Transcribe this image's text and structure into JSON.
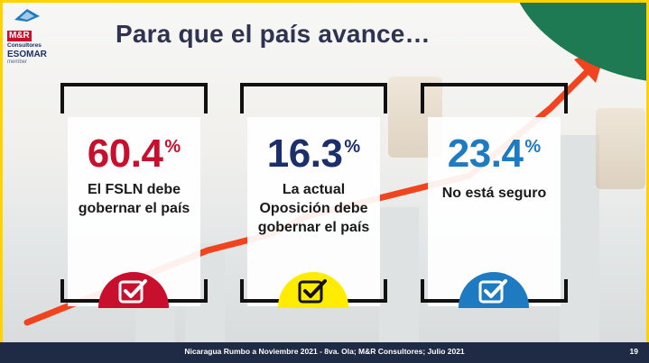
{
  "logo": {
    "brand": "M&R",
    "subtitle": "Consultores",
    "esomar": "ESOMAR",
    "member": "member"
  },
  "title": "Para que el país avance…",
  "cards": [
    {
      "percent": "60.4",
      "symbol": "%",
      "label": "El FSLN debe gobernar el país",
      "color": "#c8102e"
    },
    {
      "percent": "16.3",
      "symbol": "%",
      "label": "La actual Oposición debe gobernar el país",
      "color": "#1b2f6b"
    },
    {
      "percent": "23.4",
      "symbol": "%",
      "label": "No está seguro",
      "color": "#1f7bc1"
    }
  ],
  "badge_colors": [
    "#c8102e",
    "#ffec00",
    "#1f7bc1"
  ],
  "footer": {
    "text": "Nicaragua Rumbo a Noviembre 2021 -  8va. Ola; M&R Consultores; Julio 2021",
    "page": "19"
  },
  "colors": {
    "frame": "#ffd200",
    "green": "#1e7a52",
    "arrow": "#f0441f",
    "footer_bg": "#1f2a44"
  }
}
